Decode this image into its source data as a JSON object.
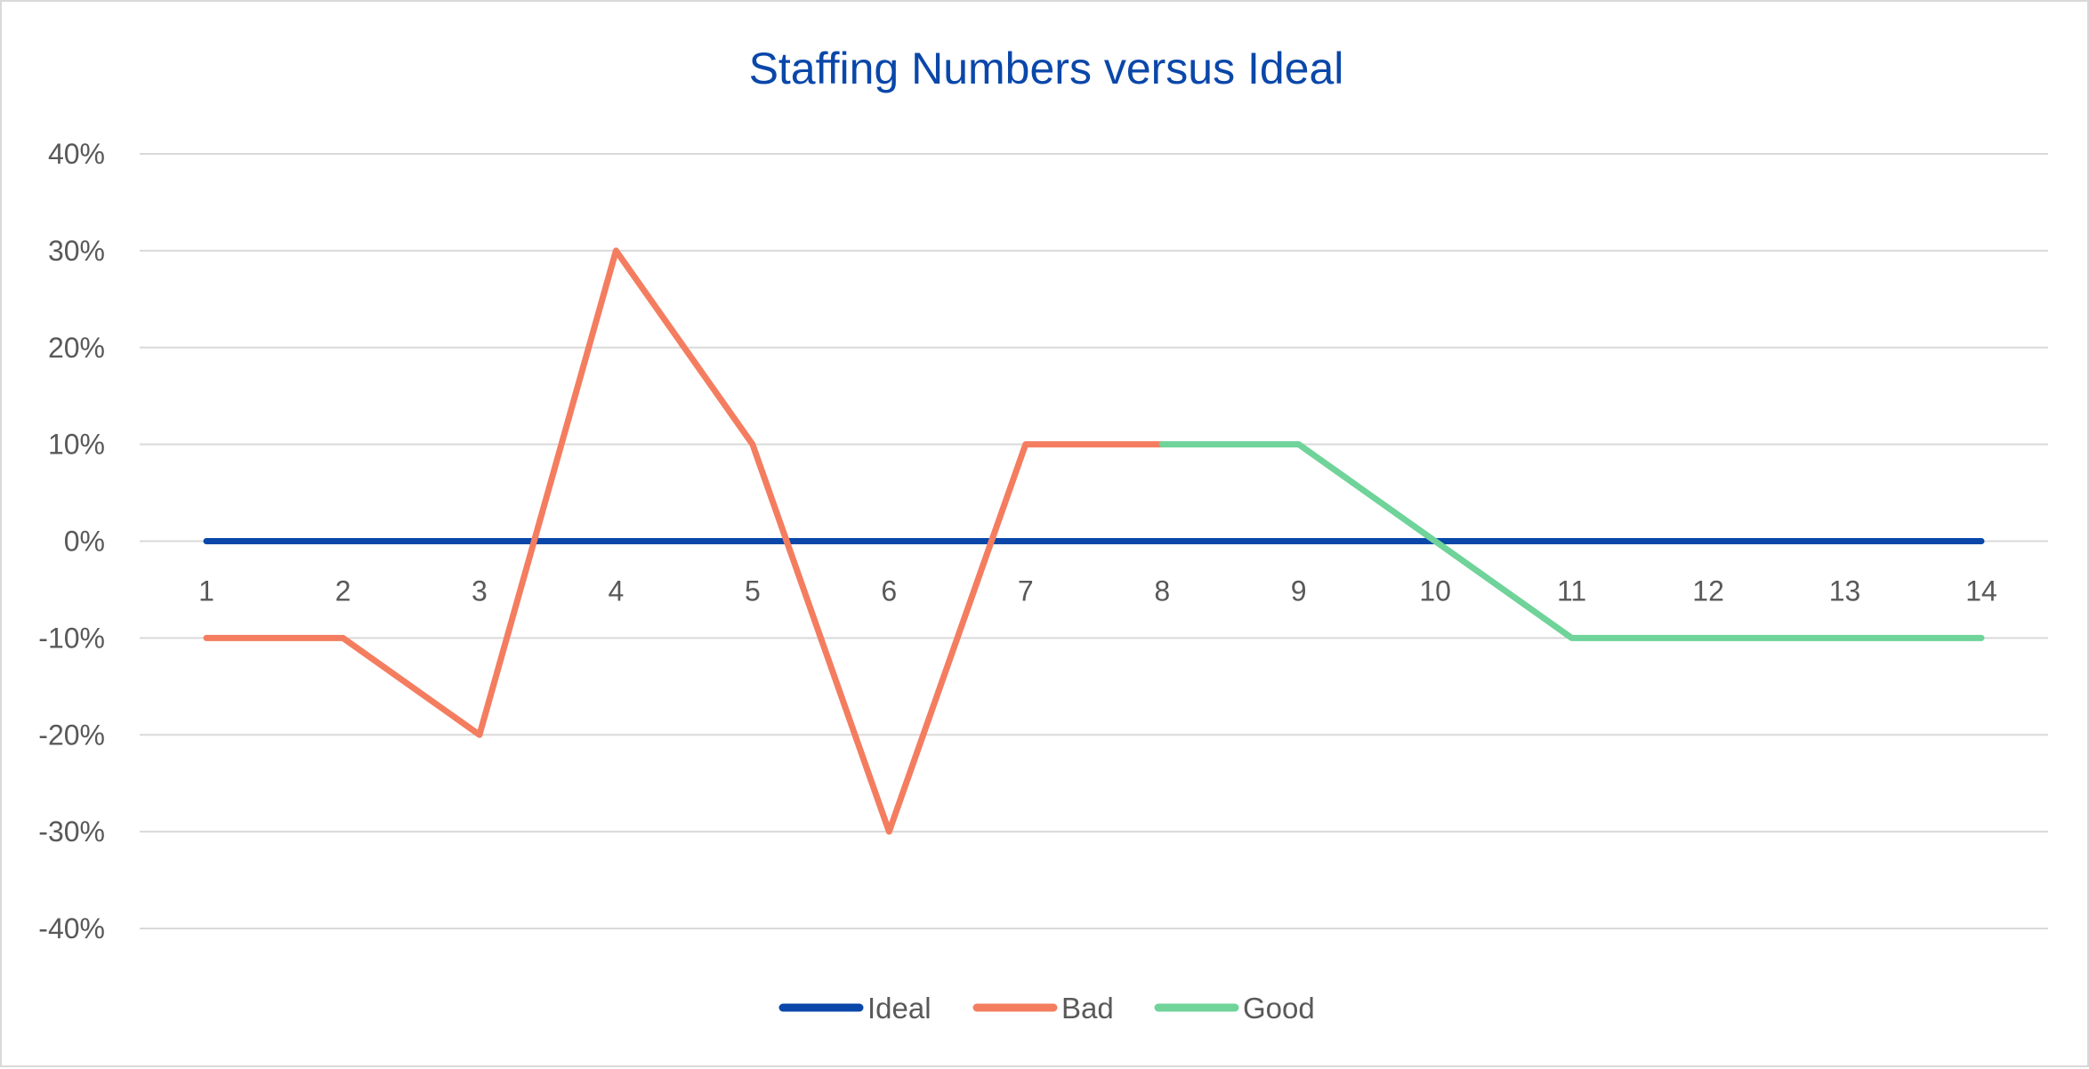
{
  "chart_data": {
    "type": "line",
    "title": "Staffing Numbers versus Ideal",
    "xlabel": "",
    "ylabel": "",
    "x": [
      1,
      2,
      3,
      4,
      5,
      6,
      7,
      8,
      9,
      10,
      11,
      12,
      13,
      14
    ],
    "x_tick_labels": [
      "1",
      "2",
      "3",
      "4",
      "5",
      "6",
      "7",
      "8",
      "9",
      "10",
      "11",
      "12",
      "13",
      "14"
    ],
    "ylim": [
      -0.4,
      0.4
    ],
    "y_tick_values": [
      0.4,
      0.3,
      0.2,
      0.1,
      0,
      -0.1,
      -0.2,
      -0.3,
      -0.4
    ],
    "y_tick_labels": [
      "40%",
      "30%",
      "20%",
      "10%",
      "0%",
      "-10%",
      "-20%",
      "-30%",
      "-40%"
    ],
    "grid": true,
    "legend_position": "bottom",
    "series": [
      {
        "name": "Ideal",
        "color": "#0a47a9",
        "x": [
          1,
          2,
          3,
          4,
          5,
          6,
          7,
          8,
          9,
          10,
          11,
          12,
          13,
          14
        ],
        "values": [
          0,
          0,
          0,
          0,
          0,
          0,
          0,
          0,
          0,
          0,
          0,
          0,
          0,
          0
        ]
      },
      {
        "name": "Bad",
        "color": "#f47d60",
        "x": [
          1,
          2,
          3,
          4,
          5,
          6,
          7,
          8
        ],
        "values": [
          -0.1,
          -0.1,
          -0.2,
          0.3,
          0.1,
          -0.3,
          0.1,
          0.1
        ]
      },
      {
        "name": "Good",
        "color": "#6fd39a",
        "x": [
          8,
          9,
          10,
          11,
          12,
          13,
          14
        ],
        "values": [
          0.1,
          0.1,
          0,
          -0.1,
          -0.1,
          -0.1,
          -0.1
        ]
      }
    ]
  }
}
